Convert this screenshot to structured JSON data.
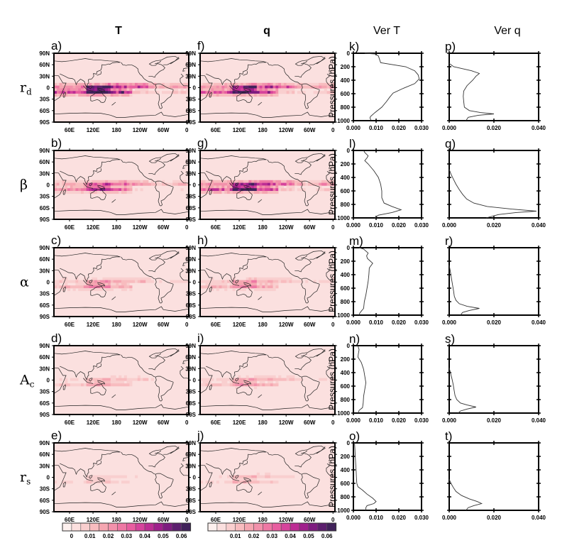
{
  "column_titles": [
    "T",
    "q",
    "Ver T",
    "Ver q"
  ],
  "row_labels": [
    {
      "main": "r",
      "sub": "d"
    },
    {
      "main": "β",
      "sub": ""
    },
    {
      "main": "α",
      "sub": ""
    },
    {
      "main": "A",
      "sub": "c"
    },
    {
      "main": "r",
      "sub": "s"
    }
  ],
  "map_panel_labels": {
    "T": [
      "a)",
      "b)",
      "c)",
      "d)",
      "e)"
    ],
    "q": [
      "f)",
      "g)",
      "h)",
      "i)",
      "j)"
    ]
  },
  "profile_panel_labels": {
    "VerT": [
      "k)",
      "l)",
      "m)",
      "n)",
      "o)"
    ],
    "Verq": [
      "p)",
      "q)",
      "r)",
      "s)",
      "t)"
    ]
  },
  "map_axes": {
    "lat_ticks": [
      "90N",
      "60N",
      "30N",
      "0",
      "30S",
      "60S",
      "90S"
    ],
    "lon_ticks": [
      "60E",
      "120E",
      "180",
      "120W",
      "60W",
      "0"
    ]
  },
  "colorbars": [
    {
      "labels": [
        "0",
        "0.01",
        "0.02",
        "0.03",
        "0.04",
        "0.05",
        "0.06"
      ],
      "colors": [
        "#fdf0ee",
        "#fbe0df",
        "#f9cfcf",
        "#f8bcbf",
        "#f5a6b1",
        "#f291ab",
        "#ee78a4",
        "#e85ea0",
        "#d6439c",
        "#bd2d94",
        "#a01f8c",
        "#7e1c80",
        "#5c1f6e",
        "#40225a"
      ]
    },
    {
      "labels": [
        "0.01",
        "0.02",
        "0.03",
        "0.04",
        "0.05",
        "0.06"
      ],
      "colors": [
        "#fdf0ee",
        "#fbe0df",
        "#f9cfcf",
        "#f8bcbf",
        "#f5a6b1",
        "#f291ab",
        "#ee78a4",
        "#e85ea0",
        "#d6439c",
        "#bd2d94",
        "#a01f8c",
        "#7e1c80",
        "#5c1f6e",
        "#40225a"
      ]
    }
  ],
  "chart_data": [
    {
      "type": "heatmap",
      "title": "T",
      "description": "Global maps of T sensitivity for parameters rd, β, α, Ac, rs; strongest along tropics (ITCZ, Indo-Pacific warm pool)",
      "xlabel": "",
      "ylabel": "",
      "x_ticks": [
        "60E",
        "120E",
        "180",
        "120W",
        "60W",
        "0"
      ],
      "y_ticks": [
        "90N",
        "60N",
        "30N",
        "0",
        "30S",
        "60S",
        "90S"
      ],
      "colorbar_range": [
        0,
        0.065
      ],
      "panels": [
        {
          "label": "a)",
          "parameter": "rd",
          "relative_intensity": 1.0
        },
        {
          "label": "b)",
          "parameter": "β",
          "relative_intensity": 0.6
        },
        {
          "label": "c)",
          "parameter": "α",
          "relative_intensity": 0.35
        },
        {
          "label": "d)",
          "parameter": "Ac",
          "relative_intensity": 0.25
        },
        {
          "label": "e)",
          "parameter": "rs",
          "relative_intensity": 0.15
        }
      ]
    },
    {
      "type": "heatmap",
      "title": "q",
      "x_ticks": [
        "60E",
        "120E",
        "180",
        "120W",
        "60W",
        "0"
      ],
      "y_ticks": [
        "90N",
        "60N",
        "30N",
        "0",
        "30S",
        "60S",
        "90S"
      ],
      "colorbar_range": [
        0,
        0.065
      ],
      "panels": [
        {
          "label": "f)",
          "parameter": "rd",
          "relative_intensity": 0.85
        },
        {
          "label": "g)",
          "parameter": "β",
          "relative_intensity": 0.85
        },
        {
          "label": "h)",
          "parameter": "α",
          "relative_intensity": 0.35
        },
        {
          "label": "i)",
          "parameter": "Ac",
          "relative_intensity": 0.3
        },
        {
          "label": "j)",
          "parameter": "rs",
          "relative_intensity": 0.2
        }
      ]
    },
    {
      "type": "line",
      "title": "Ver T",
      "xlabel": "",
      "ylabel": "Pressures (hPa)",
      "xlim": [
        0,
        0.03
      ],
      "ylim": [
        1000,
        0
      ],
      "x_ticks": [
        "0.000",
        "0.010",
        "0.020",
        "0.030"
      ],
      "y_ticks": [
        "0",
        "200",
        "400",
        "600",
        "800",
        "1000"
      ],
      "series": [
        {
          "name": "k) rd",
          "pressure": [
            0,
            10,
            40,
            90,
            140,
            200,
            260,
            320,
            380,
            450,
            520,
            590,
            650,
            720,
            800,
            880,
            940,
            960,
            1000
          ],
          "values": [
            0.005,
            0.0095,
            0.011,
            0.0115,
            0.012,
            0.023,
            0.027,
            0.0285,
            0.029,
            0.027,
            0.022,
            0.0175,
            0.016,
            0.0145,
            0.0125,
            0.0095,
            0.0075,
            0.0073,
            0.0078
          ]
        },
        {
          "name": "l) β",
          "pressure": [
            0,
            30,
            80,
            110,
            150,
            200,
            300,
            400,
            500,
            600,
            700,
            780,
            830,
            880,
            920,
            960,
            1000
          ],
          "values": [
            0.0045,
            0.005,
            0.0065,
            0.006,
            0.005,
            0.0065,
            0.009,
            0.011,
            0.012,
            0.0125,
            0.0125,
            0.0135,
            0.017,
            0.021,
            0.017,
            0.011,
            0.0095
          ]
        },
        {
          "name": "m) α",
          "pressure": [
            0,
            20,
            80,
            120,
            160,
            230,
            300,
            400,
            500,
            600,
            700,
            800,
            900,
            940,
            970,
            1000
          ],
          "values": [
            0.0025,
            0.0045,
            0.0065,
            0.0058,
            0.0062,
            0.0085,
            0.007,
            0.0068,
            0.0065,
            0.006,
            0.0055,
            0.0048,
            0.0045,
            0.0035,
            0.0028,
            0.0025
          ]
        },
        {
          "name": "n) Ac",
          "pressure": [
            0,
            60,
            120,
            170,
            250,
            350,
            450,
            550,
            650,
            750,
            850,
            920,
            960,
            1000
          ],
          "values": [
            0.002,
            0.0025,
            0.0022,
            0.002,
            0.0035,
            0.0045,
            0.005,
            0.0055,
            0.005,
            0.0045,
            0.0043,
            0.004,
            0.0025,
            0.0022
          ]
        },
        {
          "name": "o) rs",
          "pressure": [
            0,
            100,
            200,
            300,
            400,
            500,
            600,
            650,
            700,
            760,
            820,
            870,
            900,
            930,
            960,
            1000
          ],
          "values": [
            0.0005,
            0.0007,
            0.0008,
            0.001,
            0.0012,
            0.0013,
            0.0015,
            0.002,
            0.004,
            0.006,
            0.0085,
            0.01,
            0.009,
            0.006,
            0.0055,
            0.0055
          ]
        }
      ]
    },
    {
      "type": "line",
      "title": "Ver q",
      "xlim": [
        0,
        0.04
      ],
      "ylim": [
        1000,
        0
      ],
      "x_ticks": [
        "0.000",
        "0.020",
        "0.040"
      ],
      "y_ticks": [
        "0",
        "200",
        "400",
        "600",
        "800",
        "1000"
      ],
      "series": [
        {
          "name": "p) rd",
          "pressure": [
            150,
            200,
            230,
            260,
            300,
            340,
            400,
            480,
            560,
            640,
            720,
            800,
            850,
            880,
            900,
            920,
            950,
            1000
          ],
          "values": [
            0.0,
            0.002,
            0.006,
            0.01,
            0.0135,
            0.012,
            0.0105,
            0.008,
            0.0065,
            0.0063,
            0.0065,
            0.0068,
            0.009,
            0.014,
            0.02,
            0.013,
            0.0085,
            0.0075
          ]
        },
        {
          "name": "q) β",
          "pressure": [
            280,
            350,
            420,
            500,
            580,
            650,
            720,
            780,
            830,
            870,
            900,
            920,
            950,
            1000
          ],
          "values": [
            0.0,
            0.0008,
            0.0018,
            0.003,
            0.0045,
            0.006,
            0.0078,
            0.011,
            0.017,
            0.028,
            0.039,
            0.03,
            0.022,
            0.0165
          ]
        },
        {
          "name": "r) α",
          "pressure": [
            260,
            350,
            450,
            550,
            650,
            720,
            780,
            830,
            870,
            900,
            930,
            960,
            1000
          ],
          "values": [
            0.0,
            0.0005,
            0.001,
            0.0015,
            0.002,
            0.0023,
            0.003,
            0.0045,
            0.008,
            0.0135,
            0.009,
            0.006,
            0.005
          ]
        },
        {
          "name": "s) Ac",
          "pressure": [
            330,
            420,
            500,
            580,
            660,
            740,
            800,
            850,
            880,
            910,
            940,
            970,
            1000
          ],
          "values": [
            0.0,
            0.0007,
            0.0013,
            0.0018,
            0.0022,
            0.0026,
            0.0034,
            0.005,
            0.008,
            0.012,
            0.008,
            0.005,
            0.004
          ]
        },
        {
          "name": "t) rs",
          "pressure": [
            540,
            600,
            660,
            720,
            780,
            830,
            870,
            900,
            930,
            960,
            1000
          ],
          "values": [
            0.0,
            0.0008,
            0.0018,
            0.003,
            0.0055,
            0.009,
            0.0125,
            0.0145,
            0.011,
            0.0085,
            0.0075
          ]
        }
      ]
    }
  ]
}
